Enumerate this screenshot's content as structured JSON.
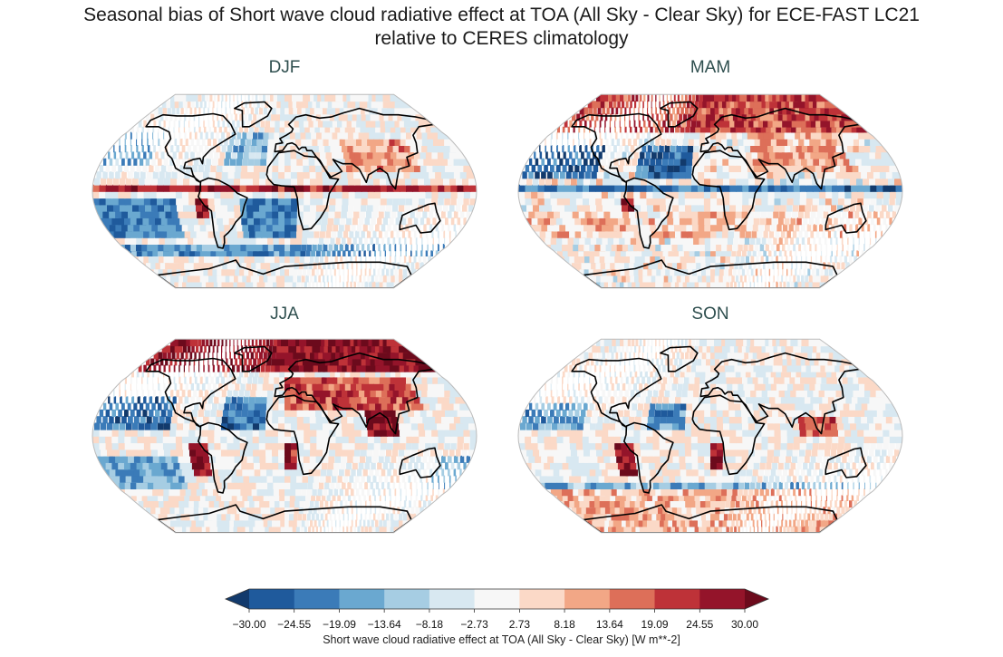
{
  "figure": {
    "title_line1": "Seasonal bias of Short wave cloud radiative effect at TOA (All Sky - Clear Sky) for ECE-FAST LC21",
    "title_line2": "relative to CERES climatology"
  },
  "chart_data": {
    "type": "heatmap",
    "projection": "Robinson (global map)",
    "panels": [
      {
        "name": "DJF",
        "pattern": "strong negative (blue) bias over Southern Ocean and subtropical oceans; positive (red) bias in tropical ITCZ band and off west coasts"
      },
      {
        "name": "MAM",
        "pattern": "strong negative bias North Atlantic/Pacific; positive bias over Arctic/Greenland and Asia"
      },
      {
        "name": "JJA",
        "pattern": "strong positive bias over Arctic, Eurasia and west coasts; negative over subtropical oceans"
      },
      {
        "name": "SON",
        "pattern": "positive bias off South America and Africa west coasts; mixed elsewhere"
      }
    ],
    "colorbar": {
      "levels": [
        -30.0,
        -24.55,
        -19.09,
        -13.64,
        -8.18,
        -2.73,
        2.73,
        8.18,
        13.64,
        19.09,
        24.55,
        30.0
      ],
      "tick_labels": [
        "−30.00",
        "−24.55",
        "−19.09",
        "−13.64",
        "−8.18",
        "−2.73",
        "2.73",
        "8.18",
        "13.64",
        "19.09",
        "24.55",
        "30.00"
      ],
      "colors": [
        "#1f5a9c",
        "#3b7bb8",
        "#6aa8d0",
        "#a6cde3",
        "#d8e8f1",
        "#f7f7f7",
        "#fbd9c7",
        "#f2a786",
        "#dd6f59",
        "#be3238",
        "#94142a"
      ],
      "extend_low_color": "#123a6c",
      "extend_high_color": "#6c0a1c",
      "label": "Short wave cloud radiative effect at TOA (All Sky - Clear Sky) [W m**-2]",
      "range": [
        -30,
        30
      ],
      "units": "W m**-2"
    }
  }
}
